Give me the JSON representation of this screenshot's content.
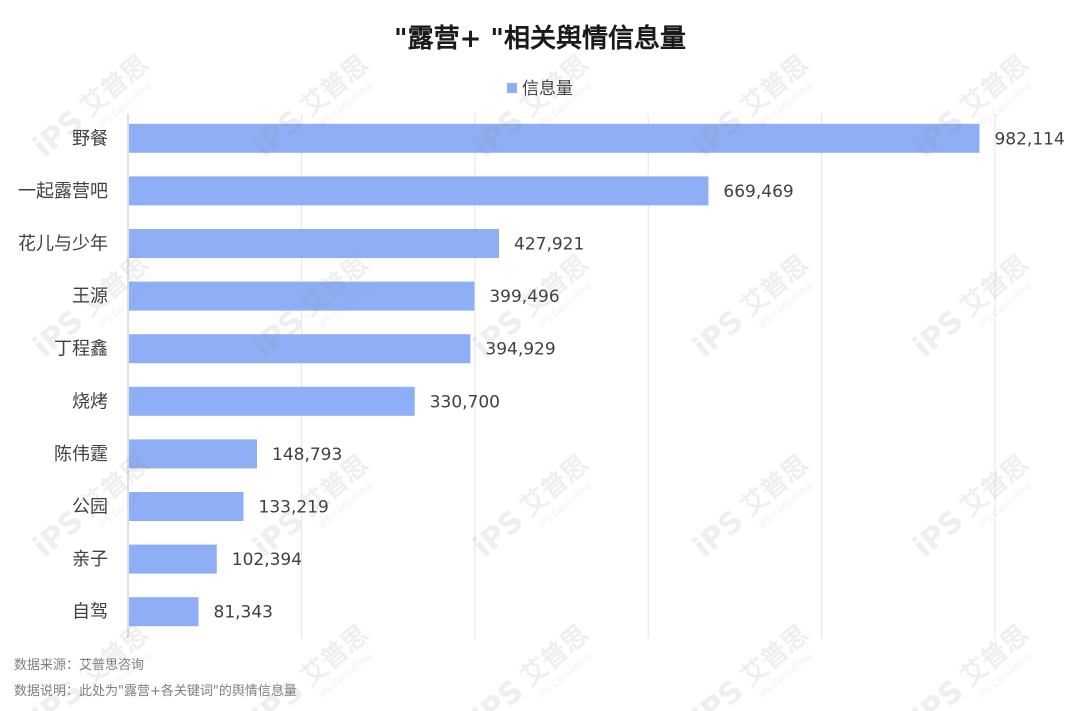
{
  "chart_data": {
    "type": "bar",
    "orientation": "horizontal",
    "title": "\"露营+ \"相关舆情信息量",
    "legend": {
      "position": "top",
      "entries": [
        "信息量"
      ]
    },
    "categories": [
      "野餐",
      "一起露营吧",
      "花儿与少年",
      "王源",
      "丁程鑫",
      "烧烤",
      "陈伟霆",
      "公园",
      "亲子",
      "自驾"
    ],
    "series": [
      {
        "name": "信息量",
        "color": "#8eaef5",
        "values": [
          982114,
          669469,
          427921,
          399496,
          394929,
          330700,
          148793,
          133219,
          102394,
          81343
        ],
        "labels": [
          "982,114",
          "669,469",
          "427,921",
          "399,496",
          "394,929",
          "330,700",
          "148,793",
          "133,219",
          "102,394",
          "81,343"
        ]
      }
    ],
    "xlim": [
      0,
      1000000
    ],
    "grid": {
      "vertical": true,
      "step": 200000
    },
    "xlabel": "",
    "ylabel": ""
  },
  "notes": {
    "source": "数据来源：艾普思咨询",
    "explanation": "数据说明：此处为\"露营+各关键词\"的舆情信息量"
  },
  "watermark": {
    "brand": "艾普思",
    "sub": "IPS Consulting",
    "logo": "iPS"
  }
}
